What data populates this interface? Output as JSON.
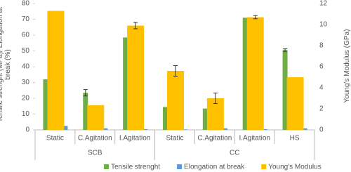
{
  "chart_data": {
    "type": "bar",
    "y_label": "Tensile strenght (MPa)/ Elongation at break (%)",
    "y2_label": "Young's Modulus (GPa)",
    "groups": [
      {
        "label": "SCB",
        "categories": [
          "Static",
          "C.Agitation",
          "I.Agitation"
        ]
      },
      {
        "label": "CC",
        "categories": [
          "Static",
          "C.Agitation",
          "I.Agitation",
          "HS"
        ]
      }
    ],
    "series": [
      {
        "name": "Tensile strenght",
        "color": "#70ad47",
        "values": [
          32,
          23.5,
          58.5,
          14.5,
          13.5,
          71,
          50.5
        ],
        "errors": [
          null,
          2,
          null,
          null,
          null,
          null,
          0.8
        ]
      },
      {
        "name": "Elongation at break",
        "color": "#5b9bd5",
        "values": [
          2.5,
          1,
          0.5,
          0.3,
          1,
          0.5,
          1
        ],
        "errors": [
          null,
          null,
          null,
          null,
          null,
          null,
          null
        ]
      },
      {
        "name": "Young's Modulus",
        "color": "#ffc000",
        "axis": "y2",
        "values": [
          11.3,
          2.35,
          9.9,
          5.6,
          3,
          10.7,
          5
        ],
        "errors": [
          null,
          null,
          0.3,
          0.5,
          0.5,
          0.15,
          null
        ]
      }
    ],
    "ylim": [
      0,
      80
    ],
    "yticks": [
      0,
      10,
      20,
      30,
      40,
      50,
      60,
      70,
      80
    ],
    "y2lim": [
      0,
      12
    ],
    "y2ticks": [
      0,
      2,
      4,
      6,
      8,
      10,
      12
    ],
    "legend": "bottom"
  }
}
